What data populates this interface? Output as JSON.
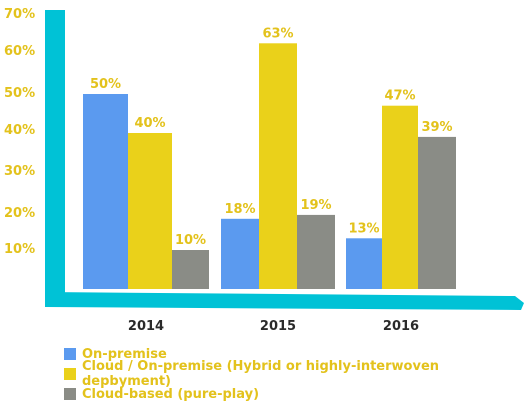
{
  "colors": {
    "axis": "#00c2d6",
    "label": "#e3c21c",
    "on_premise": "#5b9aef",
    "hybrid": "#ead11a",
    "cloud": "#8a8c86"
  },
  "chart_data": {
    "type": "bar",
    "categories": [
      "2014",
      "2015",
      "2016"
    ],
    "series": [
      {
        "name": "On-premise",
        "values": [
          50,
          18,
          13
        ],
        "labels": [
          "50%",
          "18%",
          "13%"
        ]
      },
      {
        "name": "Cloud / On-premise (Hybrid or highly-interwoven depbyment)",
        "values": [
          40,
          63,
          47
        ],
        "labels": [
          "40%",
          "63%",
          "47%"
        ]
      },
      {
        "name": "Cloud-based (pure-play)",
        "values": [
          10,
          19,
          39
        ],
        "labels": [
          "10%",
          "19%",
          "39%"
        ]
      }
    ],
    "yticks": [
      10,
      20,
      30,
      40,
      50,
      60,
      70
    ],
    "ytick_labels": [
      "10%",
      "20%",
      "30%",
      "40%",
      "50%",
      "60%",
      "70%"
    ],
    "ylim": [
      0,
      70
    ],
    "legend_position": "bottom-left"
  }
}
